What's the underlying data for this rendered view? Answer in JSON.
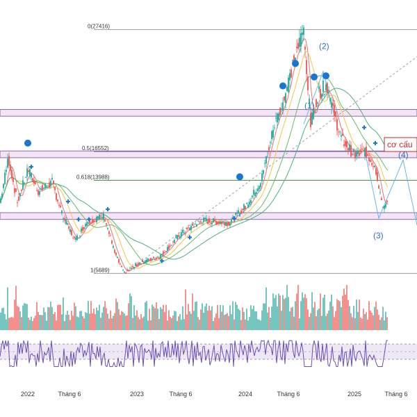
{
  "chart_data": {
    "type": "candlestick",
    "price_range": [
      5400,
      28200
    ],
    "fib_levels": [
      {
        "label": "0(27416)",
        "value": 27416,
        "color": "#9e9e9e"
      },
      {
        "label": "0.5(16552)",
        "value": 16552,
        "color": "#7b5aa6"
      },
      {
        "label": "0.618(13988)",
        "value": 13988,
        "color": "#3a8a3a"
      },
      {
        "label": "1(5689)",
        "value": 5689,
        "color": "#9e9e9e"
      }
    ],
    "zones": [
      {
        "from": 16000,
        "to": 16600
      },
      {
        "from": 10500,
        "to": 11100
      },
      {
        "from": 19700,
        "to": 20300
      }
    ],
    "wave_labels": [
      "(1)",
      "(2)",
      "(3)",
      "(4)"
    ],
    "annotation": "cơ cấu",
    "x_labels": [
      "2022",
      "Tháng 6",
      "2023",
      "Tháng 6",
      "2024",
      "Tháng 6",
      "2025",
      "Tháng 6"
    ],
    "x_label_t": [
      40,
      100,
      197,
      260,
      353,
      415,
      510,
      570
    ],
    "close_knots": [
      [
        0,
        12000
      ],
      [
        12,
        16000
      ],
      [
        25,
        12000
      ],
      [
        40,
        15000
      ],
      [
        55,
        13000
      ],
      [
        75,
        13800
      ],
      [
        90,
        10800
      ],
      [
        108,
        8600
      ],
      [
        125,
        10300
      ],
      [
        150,
        10800
      ],
      [
        165,
        7500
      ],
      [
        178,
        5700
      ],
      [
        200,
        6600
      ],
      [
        230,
        7200
      ],
      [
        260,
        9200
      ],
      [
        290,
        10400
      ],
      [
        330,
        10200
      ],
      [
        355,
        11800
      ],
      [
        375,
        13800
      ],
      [
        395,
        19000
      ],
      [
        410,
        21500
      ],
      [
        422,
        24500
      ],
      [
        437,
        27400
      ],
      [
        447,
        19000
      ],
      [
        458,
        21800
      ],
      [
        470,
        22500
      ],
      [
        490,
        17800
      ],
      [
        510,
        16200
      ],
      [
        525,
        16600
      ],
      [
        540,
        15200
      ],
      [
        552,
        11200
      ],
      [
        558,
        12500
      ]
    ],
    "volume": {
      "max": 100
    },
    "rsi": {
      "range": [
        0,
        100
      ],
      "levels": [
        70,
        50,
        30
      ]
    }
  },
  "colors": {
    "up": "#26a69a",
    "down": "#ef5350",
    "ma_short": "#e57373",
    "ma_mid": "#f4c542",
    "ma_long": "#66bb6a",
    "ma_longer": "#4caf7d",
    "rsi": "#6a4fb5",
    "badge": "#1976d2"
  }
}
